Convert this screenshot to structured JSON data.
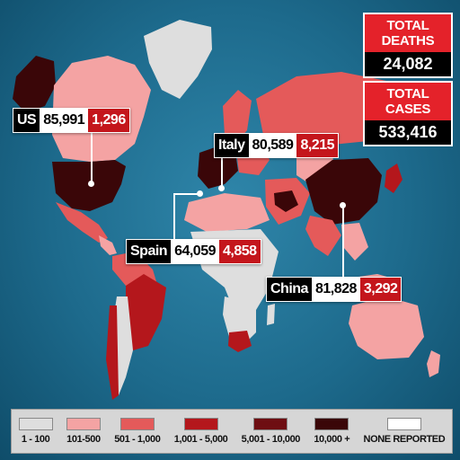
{
  "totals": {
    "deaths_label": "TOTAL DEATHS",
    "deaths_value": "24,082",
    "cases_label": "TOTAL CASES",
    "cases_value": "533,416"
  },
  "callouts": [
    {
      "country": "US",
      "cases": "85,991",
      "deaths": "1,296"
    },
    {
      "country": "Italy",
      "cases": "80,589",
      "deaths": "8,215"
    },
    {
      "country": "Spain",
      "cases": "64,059",
      "deaths": "4,858"
    },
    {
      "country": "China",
      "cases": "81,828",
      "deaths": "3,292"
    }
  ],
  "legend": [
    {
      "label": "1 - 100",
      "color": "#dedede"
    },
    {
      "label": "101-500",
      "color": "#f4a3a3"
    },
    {
      "label": "501 - 1,000",
      "color": "#e45a5a"
    },
    {
      "label": "1,001 - 5,000",
      "color": "#b4171c"
    },
    {
      "label": "5,001 - 10,000",
      "color": "#6e0e12"
    },
    {
      "label": "10,000 +",
      "color": "#3a0608"
    },
    {
      "label": "NONE REPORTED",
      "color": "#ffffff"
    }
  ]
}
